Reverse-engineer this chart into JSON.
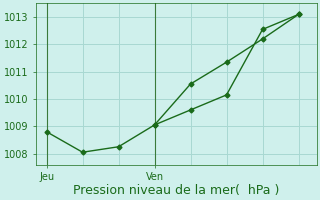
{
  "line1_x": [
    0,
    1,
    2,
    3,
    4,
    5,
    6,
    7
  ],
  "line1_y": [
    1008.8,
    1008.05,
    1008.25,
    1009.05,
    1010.55,
    1011.35,
    1012.2,
    1013.1
  ],
  "line2_x": [
    3,
    4,
    5,
    6,
    7
  ],
  "line2_y": [
    1009.05,
    1009.6,
    1010.15,
    1012.55,
    1013.1
  ],
  "yticks": [
    1008,
    1009,
    1010,
    1011,
    1012,
    1013
  ],
  "xtick_jeu_x": 0,
  "xtick_ven_x": 3,
  "bg_color": "#cff0ec",
  "grid_color": "#a8d8d2",
  "line_color": "#1a6b1a",
  "vline_color": "#3a7a3a",
  "xlabel": "Pression niveau de la mer(  hPa )",
  "xlabel_fontsize": 9,
  "tick_label_fontsize": 7,
  "ylim_min": 1007.6,
  "ylim_max": 1013.5,
  "xlim_min": -0.3,
  "xlim_max": 7.5
}
